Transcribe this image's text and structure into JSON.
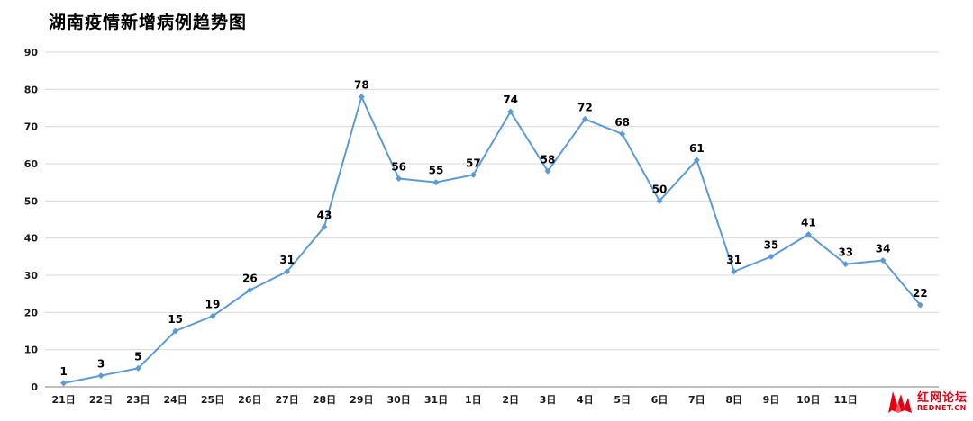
{
  "title": "湖南疫情新增病例趋势图",
  "watermark": {
    "line1": "红网论坛",
    "line2": "REDNET.CN",
    "color": "#e60012"
  },
  "chart_data": {
    "type": "line",
    "title": "湖南疫情新增病例趋势图",
    "categories": [
      "21日",
      "22日",
      "23日",
      "24日",
      "25日",
      "26日",
      "27日",
      "28日",
      "29日",
      "30日",
      "31日",
      "1日",
      "2日",
      "3日",
      "4日",
      "5日",
      "6日",
      "7日",
      "8日",
      "9日",
      "10日",
      "11日",
      "",
      ""
    ],
    "values": [
      1,
      3,
      5,
      15,
      19,
      26,
      31,
      43,
      78,
      56,
      55,
      57,
      74,
      58,
      72,
      68,
      50,
      61,
      31,
      35,
      41,
      33,
      34,
      22
    ],
    "xlabel": "",
    "ylabel": "",
    "ylim": [
      0,
      90
    ],
    "ytick_interval": 10,
    "yticks": [
      0,
      10,
      20,
      30,
      40,
      50,
      60,
      70,
      80,
      90
    ],
    "grid": true,
    "legend": "none",
    "line_color": "#5b9bd5",
    "marker_color": "#5b9bd5",
    "data_label_color": "#000000",
    "gridline_color": "#d9d9d9",
    "axis_line_color": "#7f7f7f",
    "tick_label_color": "#1a1a1a"
  }
}
